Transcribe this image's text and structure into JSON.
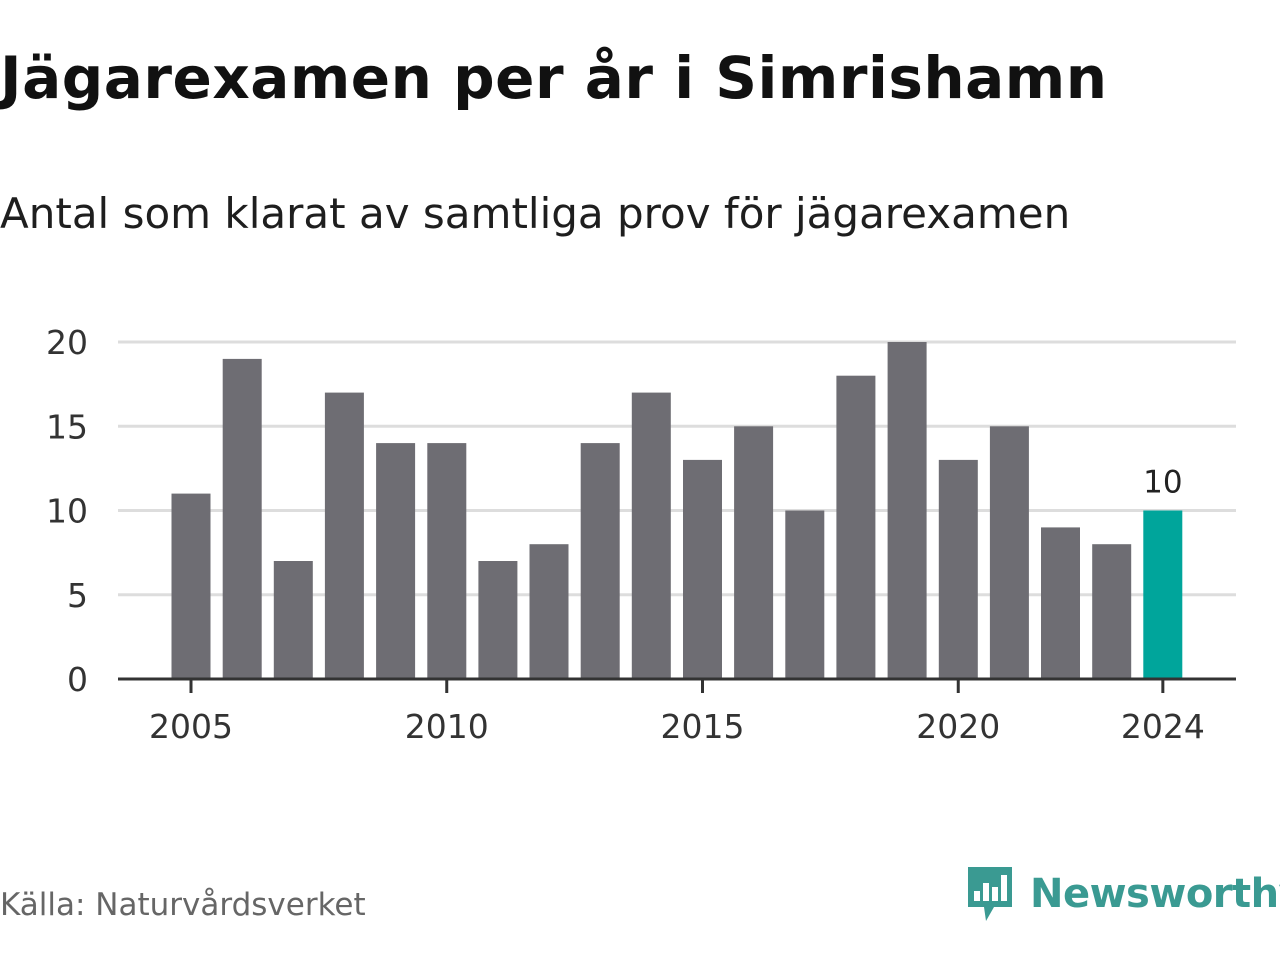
{
  "title": "Jägarexamen per år i Simrishamn",
  "subtitle": "Antal som klarat av samtliga prov för jägarexamen",
  "source": "Källa: Naturvårdsverket",
  "brand": {
    "name": "Newsworthy",
    "logo_icon": "newsworthy-logo-icon",
    "color": "#3a9a92"
  },
  "colors": {
    "bar": "#6e6d73",
    "highlight": "#00a59b",
    "grid": "#dddddd",
    "axis": "#333333"
  },
  "chart_data": {
    "type": "bar",
    "x": [
      2005,
      2006,
      2007,
      2008,
      2009,
      2010,
      2011,
      2012,
      2013,
      2014,
      2015,
      2016,
      2017,
      2018,
      2019,
      2020,
      2021,
      2022,
      2023,
      2024
    ],
    "values": [
      11,
      19,
      7,
      17,
      14,
      14,
      7,
      8,
      14,
      17,
      13,
      15,
      10,
      18,
      20,
      13,
      15,
      9,
      8,
      10
    ],
    "highlight_index": 19,
    "data_labels": [
      {
        "index": 19,
        "text": "10"
      }
    ],
    "ylim": [
      0,
      20
    ],
    "yticks": [
      "0",
      "5",
      "10",
      "15",
      "20"
    ],
    "xticks": [
      "2005",
      "2010",
      "2015",
      "2020",
      "2024"
    ],
    "grid": true,
    "legend": "none"
  }
}
